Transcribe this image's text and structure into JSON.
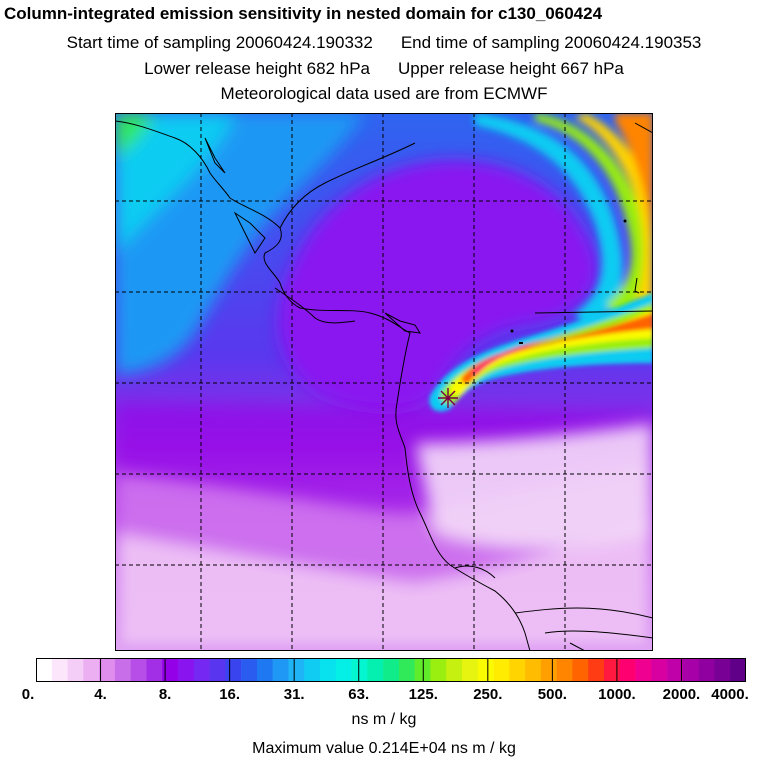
{
  "header": {
    "title": "Column-integrated emission sensitivity in nested domain for c130_060424",
    "start_time": "Start time of sampling 20060424.190332",
    "end_time": "End time of sampling 20060424.190353",
    "lower_release": "Lower release height  682 hPa",
    "upper_release": "Upper release height  667 hPa",
    "met_data": "Meteorological data used are from ECMWF"
  },
  "colorbar": {
    "units": "ns m / kg",
    "labels": [
      "0.",
      "4.",
      "8.",
      "16.",
      "31.",
      "63.",
      "125.",
      "250.",
      "500.",
      "1000.",
      "2000.",
      "4000."
    ],
    "colors": [
      "#ffffff",
      "#fbe6fb",
      "#f4cef6",
      "#ecb0f2",
      "#e08eee",
      "#c96ee9",
      "#b74ee8",
      "#a22ee6",
      "#9400e8",
      "#8a14f0",
      "#7428f2",
      "#5a35f0",
      "#3a44ee",
      "#2a5cf0",
      "#1e78f2",
      "#1e98f4",
      "#1eb4f6",
      "#10ccf2",
      "#08e2ee",
      "#04f0e6",
      "#04f6d0",
      "#04f0b0",
      "#10ec8a",
      "#30ea5a",
      "#60ec2a",
      "#9aee10",
      "#c6f010",
      "#e6f410",
      "#fafa00",
      "#ffec00",
      "#ffd400",
      "#ffbc00",
      "#ffa000",
      "#ff8400",
      "#ff6400",
      "#ff3c14",
      "#ff1840",
      "#ff0070",
      "#f00090",
      "#d800a0",
      "#c000a8",
      "#a800a8",
      "#9000a0",
      "#780094",
      "#600088"
    ]
  },
  "max_value": "Maximum value  0.214E+04 ns m / kg",
  "map": {
    "source_marker": "asterisk-marker"
  }
}
